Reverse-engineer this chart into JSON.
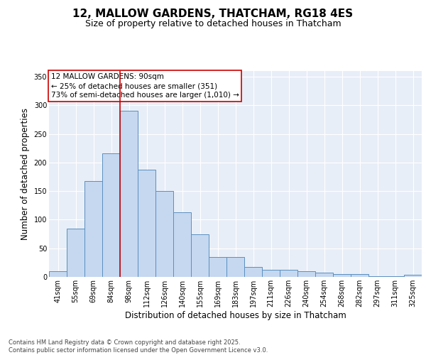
{
  "title_line1": "12, MALLOW GARDENS, THATCHAM, RG18 4ES",
  "title_line2": "Size of property relative to detached houses in Thatcham",
  "xlabel": "Distribution of detached houses by size in Thatcham",
  "ylabel": "Number of detached properties",
  "categories": [
    "41sqm",
    "55sqm",
    "69sqm",
    "84sqm",
    "98sqm",
    "112sqm",
    "126sqm",
    "140sqm",
    "155sqm",
    "169sqm",
    "183sqm",
    "197sqm",
    "211sqm",
    "226sqm",
    "240sqm",
    "254sqm",
    "268sqm",
    "282sqm",
    "297sqm",
    "311sqm",
    "325sqm"
  ],
  "values": [
    10,
    85,
    167,
    216,
    290,
    187,
    150,
    113,
    75,
    35,
    35,
    18,
    13,
    13,
    10,
    7,
    5,
    5,
    1,
    1,
    4
  ],
  "bar_color": "#c5d8f0",
  "bar_edge_color": "#5a8fc0",
  "vline_x_index": 3.5,
  "vline_color": "#cc0000",
  "annotation_text": "12 MALLOW GARDENS: 90sqm\n← 25% of detached houses are smaller (351)\n73% of semi-detached houses are larger (1,010) →",
  "annotation_box_color": "#ffffff",
  "annotation_box_edge": "#cc0000",
  "ylim": [
    0,
    360
  ],
  "yticks": [
    0,
    50,
    100,
    150,
    200,
    250,
    300,
    350
  ],
  "background_color": "#e8eef7",
  "grid_color": "#ffffff",
  "fig_background": "#ffffff",
  "footer_text": "Contains HM Land Registry data © Crown copyright and database right 2025.\nContains public sector information licensed under the Open Government Licence v3.0.",
  "title_fontsize": 11,
  "subtitle_fontsize": 9,
  "axis_label_fontsize": 8.5,
  "tick_fontsize": 7,
  "annotation_fontsize": 7.5,
  "footer_fontsize": 6
}
